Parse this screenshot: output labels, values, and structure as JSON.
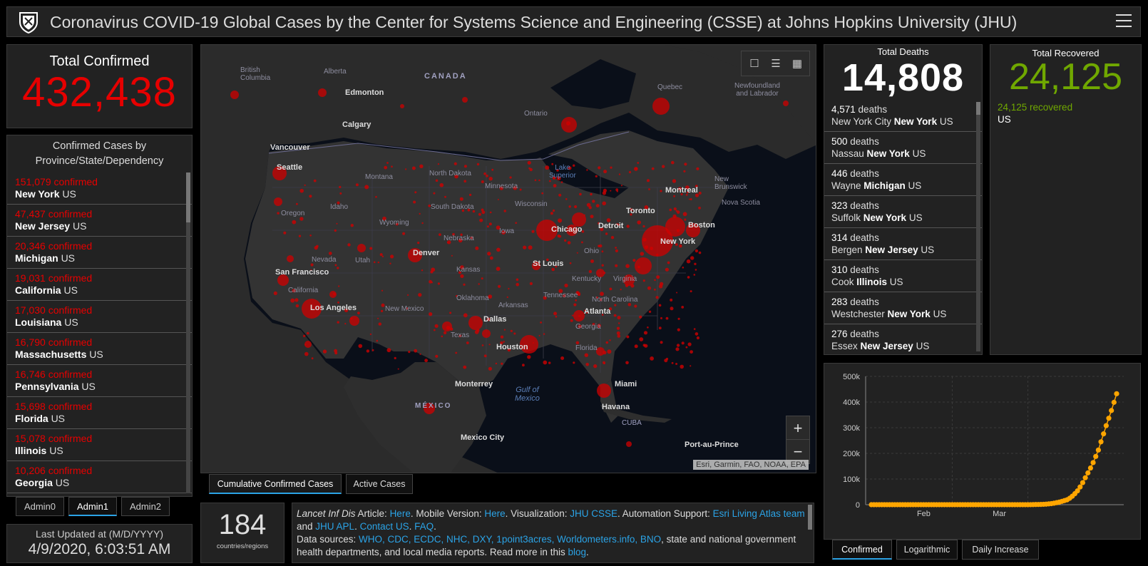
{
  "header": {
    "title": "Coronavirus COVID-19 Global Cases by the Center for Systems Science and Engineering (CSSE) at Johns Hopkins University (JHU)"
  },
  "total_confirmed": {
    "label": "Total Confirmed",
    "value": "432,438"
  },
  "confirmed_list": {
    "heading": "Confirmed Cases by Province/State/Dependency",
    "items": [
      {
        "count": "151,079 confirmed",
        "place": "New York",
        "country": "US"
      },
      {
        "count": "47,437 confirmed",
        "place": "New Jersey",
        "country": "US"
      },
      {
        "count": "20,346 confirmed",
        "place": "Michigan",
        "country": "US"
      },
      {
        "count": "19,031 confirmed",
        "place": "California",
        "country": "US"
      },
      {
        "count": "17,030 confirmed",
        "place": "Louisiana",
        "country": "US"
      },
      {
        "count": "16,790 confirmed",
        "place": "Massachusetts",
        "country": "US"
      },
      {
        "count": "16,746 confirmed",
        "place": "Pennsylvania",
        "country": "US"
      },
      {
        "count": "15,698 confirmed",
        "place": "Florida",
        "country": "US"
      },
      {
        "count": "15,078 confirmed",
        "place": "Illinois",
        "country": "US"
      },
      {
        "count": "10,206 confirmed",
        "place": "Georgia",
        "country": "US"
      }
    ]
  },
  "admin_tabs": [
    "Admin0",
    "Admin1",
    "Admin2"
  ],
  "last_updated": {
    "label": "Last Updated at (M/D/YYYY)",
    "value": "4/9/2020, 6:03:51 AM"
  },
  "map": {
    "attribution": "Esri, Garmin, FAO, NOAA, EPA",
    "zoom_in": "+",
    "zoom_out": "−",
    "regions": [
      "British Columbia",
      "Alberta",
      "CANADA",
      "Quebec",
      "Newfoundland and Labrador",
      "Ontario",
      "Montana",
      "North Dakota",
      "Minnesota",
      "Lake Superior",
      "New Brunswick",
      "Nova Scotia",
      "Oregon",
      "Idaho",
      "South Dakota",
      "Wisconsin",
      "Wyoming",
      "Nebraska",
      "Iowa",
      "Nevada",
      "Utah",
      "Ohio",
      "Kansas",
      "Kentucky",
      "Virginia",
      "California",
      "Tennessee",
      "North Carolina",
      "Oklahoma",
      "Arkansas",
      "New Mexico",
      "Georgia",
      "Texas",
      "Florida",
      "Gulf of Mexico",
      "MÉXICO",
      "CUBA"
    ],
    "cities": [
      "Edmonton",
      "Calgary",
      "Vancouver",
      "Seattle",
      "Montreal",
      "Toronto",
      "Boston",
      "New York",
      "Chicago",
      "Detroit",
      "Denver",
      "San Francisco",
      "St Louis",
      "Los Angeles",
      "Atlanta",
      "Dallas",
      "Houston",
      "Monterrey",
      "Miami",
      "Havana",
      "Mexico City",
      "Port-au-Prince"
    ]
  },
  "map_tabs": [
    "Cumulative Confirmed Cases",
    "Active Cases"
  ],
  "countries": {
    "value": "184",
    "label": "countries/regions"
  },
  "info": {
    "t1": "Lancet Inf Dis",
    "t2": " Article: ",
    "l_here1": "Here",
    "t3": ". Mobile Version: ",
    "l_here2": "Here",
    "t4": ". Visualization: ",
    "l_jhu": "JHU CSSE",
    "t5": ". Automation Support: ",
    "l_esri": "Esri Living Atlas team",
    "t6": " and ",
    "l_apl": "JHU APL",
    "t7": ". ",
    "l_contact": "Contact US",
    "t8": ". ",
    "l_faq": "FAQ",
    "t9": ".",
    "t10": "Data sources: ",
    "l_sources": "WHO, CDC, ECDC, NHC, DXY, 1point3acres, Worldometers.info, BNO",
    "t11": ", state and national government health departments, and local media reports.  Read more in this ",
    "l_blog": "blog",
    "t12": "."
  },
  "deaths": {
    "label": "Total Deaths",
    "value": "14,808",
    "items": [
      {
        "count": "4,571",
        "unit": " deaths",
        "pre": "New York City ",
        "place": "New York",
        "country": " US"
      },
      {
        "count": "500",
        "unit": " deaths",
        "pre": "Nassau ",
        "place": "New York",
        "country": " US"
      },
      {
        "count": "446",
        "unit": " deaths",
        "pre": "Wayne ",
        "place": "Michigan",
        "country": " US"
      },
      {
        "count": "323",
        "unit": " deaths",
        "pre": "Suffolk ",
        "place": "New York",
        "country": " US"
      },
      {
        "count": "314",
        "unit": " deaths",
        "pre": "Bergen ",
        "place": "New Jersey",
        "country": " US"
      },
      {
        "count": "310",
        "unit": " deaths",
        "pre": "Cook ",
        "place": "Illinois",
        "country": " US"
      },
      {
        "count": "283",
        "unit": " deaths",
        "pre": "Westchester ",
        "place": "New York",
        "country": " US"
      },
      {
        "count": "276",
        "unit": " deaths",
        "pre": "Essex ",
        "place": "New Jersey",
        "country": " US"
      }
    ]
  },
  "recovered": {
    "label": "Total Recovered",
    "value": "24,125",
    "items": [
      {
        "count": "24,125 recovered",
        "place": "US"
      }
    ]
  },
  "chart_tabs": [
    "Confirmed",
    "Logarithmic",
    "Daily Increase"
  ],
  "colors": {
    "confirmed": "#e60000",
    "recovered": "#70a800",
    "chart_points": "#ffa500",
    "accent": "#2ba3e6"
  },
  "chart_data": {
    "type": "line",
    "yticks": [
      "0",
      "100k",
      "200k",
      "300k",
      "400k",
      "500k"
    ],
    "xticks": [
      "Feb",
      "Mar"
    ],
    "ylim": [
      0,
      500000
    ],
    "series": [
      {
        "values": [
          0,
          0,
          0,
          0,
          0,
          0,
          0,
          0,
          0,
          0,
          0,
          0,
          0,
          0,
          0,
          0,
          0,
          0,
          0,
          0,
          0,
          0,
          0,
          0,
          0,
          0,
          0,
          0,
          0,
          0,
          0,
          0,
          0,
          0,
          0,
          0,
          0,
          0,
          0,
          0,
          0,
          0,
          0,
          0,
          0,
          0,
          0,
          0,
          0,
          0,
          0,
          0,
          0,
          0,
          0,
          0,
          0,
          0,
          0,
          0,
          100,
          200,
          400,
          650,
          800,
          1100,
          1500,
          2100,
          3100,
          4200,
          5800,
          7900,
          10000,
          13000,
          16000,
          19000,
          25000,
          33000,
          43000,
          54000,
          69000,
          86000,
          105000,
          124000,
          143000,
          164000,
          188000,
          213000,
          245000,
          276000,
          308000,
          337000,
          367000,
          399000,
          432438
        ]
      }
    ]
  }
}
